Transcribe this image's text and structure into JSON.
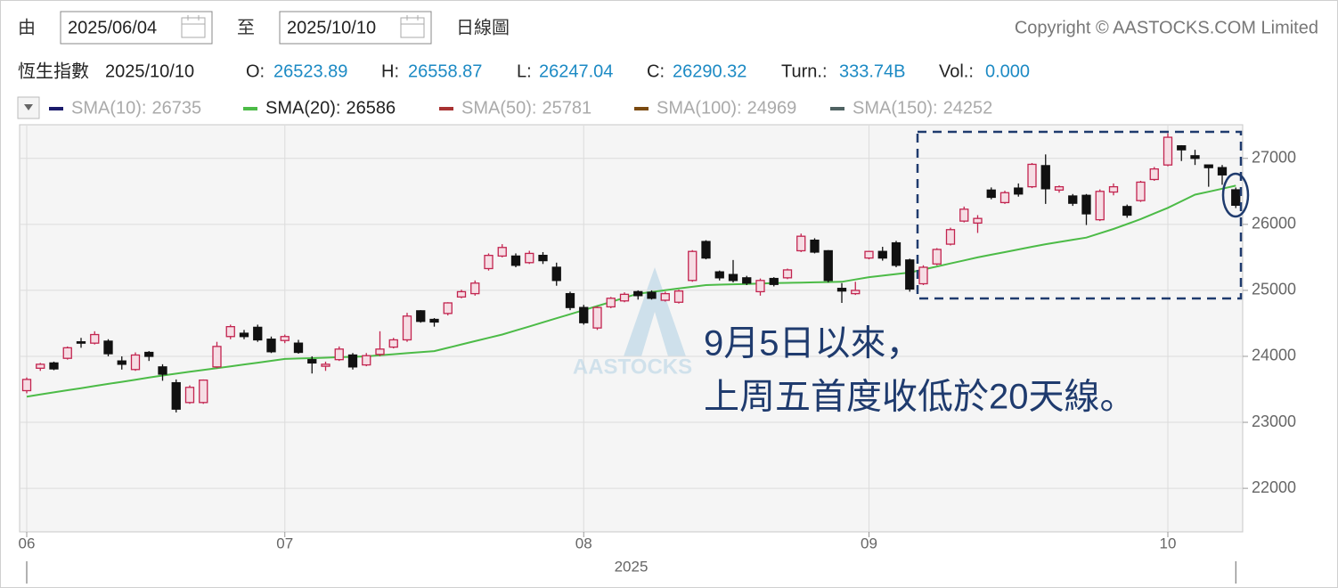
{
  "controls": {
    "from_label": "由",
    "from_date": "2025/06/04",
    "to_label": "至",
    "to_date": "2025/10/10",
    "chart_type": "日線圖",
    "copyright": "Copyright © AASTOCKS.COM Limited"
  },
  "quote": {
    "name": "恆生指數",
    "date": "2025/10/10",
    "fields": [
      {
        "label": "O:",
        "value": 26523.89
      },
      {
        "label": "H:",
        "value": 26558.87
      },
      {
        "label": "L:",
        "value": 26247.04
      },
      {
        "label": "C:",
        "value": 26290.32
      },
      {
        "label": "Turn.:",
        "value": "333.74B"
      },
      {
        "label": "Vol.:",
        "value": "0.000"
      }
    ]
  },
  "legend": [
    {
      "name": "SMA(10):",
      "value": 26735,
      "color": "#1b1b6b",
      "active": false
    },
    {
      "name": "SMA(20):",
      "value": 26586,
      "color": "#4cbb47",
      "active": true
    },
    {
      "name": "SMA(50):",
      "value": 25781,
      "color": "#a83232",
      "active": false
    },
    {
      "name": "SMA(100):",
      "value": 24969,
      "color": "#7a4a10",
      "active": false
    },
    {
      "name": "SMA(150):",
      "value": 24252,
      "color": "#4f6262",
      "active": false
    }
  ],
  "chart_data": {
    "type": "candlestick",
    "xlabel": "2025",
    "watermark": "AASTOCKS",
    "categories": [
      "06",
      null,
      null,
      null,
      null,
      null,
      null,
      null,
      null,
      null,
      null,
      null,
      null,
      null,
      null,
      null,
      null,
      null,
      null,
      "07",
      null,
      null,
      null,
      null,
      null,
      null,
      null,
      null,
      null,
      null,
      null,
      null,
      null,
      null,
      null,
      null,
      null,
      null,
      null,
      null,
      null,
      "08",
      null,
      null,
      null,
      null,
      null,
      null,
      null,
      null,
      null,
      null,
      null,
      null,
      null,
      null,
      null,
      null,
      null,
      null,
      null,
      null,
      "09",
      null,
      null,
      null,
      null,
      null,
      null,
      null,
      null,
      null,
      null,
      null,
      null,
      null,
      null,
      null,
      null,
      null,
      null,
      null,
      null,
      null,
      "10",
      null,
      null,
      null,
      null,
      null
    ],
    "open": [
      23480,
      23820,
      23900,
      23970,
      24220,
      24200,
      24230,
      23930,
      23800,
      24060,
      23840,
      23600,
      23300,
      23300,
      23840,
      24300,
      24350,
      24440,
      24260,
      24240,
      24200,
      23950,
      23850,
      23950,
      24020,
      23870,
      24030,
      24140,
      24250,
      24690,
      24560,
      24650,
      24900,
      24950,
      25330,
      25520,
      25520,
      25420,
      25530,
      25350,
      24950,
      24740,
      24430,
      24750,
      24840,
      24980,
      24970,
      24850,
      24820,
      25150,
      25740,
      25280,
      25240,
      25190,
      24980,
      25180,
      25190,
      25600,
      25760,
      25600,
      25030,
      24950,
      25490,
      25590,
      25720,
      25460,
      25100,
      25400,
      25700,
      26050,
      26020,
      26520,
      26330,
      26550,
      26570,
      26890,
      26520,
      26430,
      26440,
      26070,
      26490,
      26270,
      26360,
      26680,
      26900,
      27190,
      27040,
      26900,
      26860,
      26523.89
    ],
    "high": [
      23680,
      23900,
      23920,
      24150,
      24280,
      24380,
      24260,
      24000,
      24060,
      24080,
      23880,
      23650,
      23560,
      23650,
      24220,
      24480,
      24400,
      24480,
      24300,
      24330,
      24250,
      24000,
      23920,
      24150,
      24050,
      24050,
      24380,
      24280,
      24660,
      24700,
      24580,
      24820,
      25010,
      25150,
      25560,
      25700,
      25560,
      25600,
      25580,
      25420,
      24980,
      24780,
      24760,
      24900,
      24970,
      25000,
      25000,
      24980,
      25010,
      25610,
      25760,
      25300,
      25460,
      25220,
      25180,
      25200,
      25330,
      25860,
      25790,
      25610,
      25110,
      25130,
      25600,
      25660,
      25750,
      25480,
      25380,
      25640,
      25950,
      26270,
      26140,
      26560,
      26510,
      26620,
      26930,
      27060,
      26590,
      26460,
      26460,
      26530,
      26620,
      26300,
      26660,
      26870,
      27380,
      27200,
      27130,
      26900,
      26900,
      26558.87
    ],
    "low": [
      23440,
      23780,
      23790,
      23950,
      24130,
      24180,
      24000,
      23800,
      23780,
      23930,
      23630,
      23150,
      23280,
      23280,
      23820,
      24260,
      24260,
      24220,
      24050,
      24200,
      24040,
      23740,
      23780,
      23930,
      23800,
      23850,
      24000,
      24120,
      24220,
      24510,
      24450,
      24620,
      24880,
      24920,
      25300,
      25500,
      25350,
      25400,
      25400,
      25070,
      24700,
      24480,
      24400,
      24730,
      24820,
      24860,
      24860,
      24830,
      24800,
      25130,
      25470,
      25150,
      25120,
      25080,
      24920,
      25060,
      25170,
      25580,
      25560,
      25120,
      24810,
      24930,
      25470,
      25450,
      25350,
      24980,
      25080,
      25380,
      25680,
      26030,
      25870,
      26380,
      26310,
      26420,
      26550,
      26310,
      26480,
      26280,
      25990,
      26050,
      26440,
      26100,
      26340,
      26660,
      26880,
      26960,
      26900,
      26570,
      26600,
      26247.04
    ],
    "close": [
      23650,
      23880,
      23810,
      24130,
      24200,
      24330,
      24040,
      23880,
      24020,
      24000,
      23730,
      23200,
      23530,
      23640,
      24150,
      24450,
      24300,
      24250,
      24070,
      24300,
      24060,
      23900,
      23880,
      24110,
      23840,
      24010,
      24110,
      24250,
      24610,
      24530,
      24520,
      24810,
      24980,
      25110,
      25530,
      25650,
      25380,
      25560,
      25450,
      25150,
      24740,
      24510,
      24740,
      24880,
      24940,
      24920,
      24880,
      24950,
      24990,
      25590,
      25490,
      25190,
      25150,
      25110,
      25150,
      25090,
      25310,
      25820,
      25580,
      25150,
      24990,
      25000,
      25590,
      25490,
      25380,
      25020,
      25350,
      25620,
      25920,
      26230,
      26090,
      26410,
      26480,
      26460,
      26910,
      26540,
      26570,
      26320,
      26160,
      26500,
      26570,
      26140,
      26640,
      26840,
      27320,
      27130,
      27000,
      26860,
      26750,
      26290.32
    ],
    "up_color": "#c2244f",
    "up_fill": "#f6dde4",
    "down_color": "#111111",
    "series": [
      {
        "name": "SMA(20)",
        "color": "#4cbb47",
        "values": [
          23390,
          23422,
          23454,
          23486,
          23518,
          23550,
          23582,
          23614,
          23646,
          23678,
          23710,
          23738,
          23766,
          23793,
          23821,
          23849,
          23877,
          23904,
          23932,
          23960,
          23967,
          23973,
          23980,
          23987,
          23993,
          24000,
          24016,
          24032,
          24048,
          24064,
          24080,
          24130,
          24180,
          24230,
          24280,
          24330,
          24392,
          24453,
          24515,
          24577,
          24638,
          24700,
          24763,
          24825,
          24888,
          24950,
          24976,
          25002,
          25028,
          25054,
          25080,
          25086,
          25092,
          25098,
          25104,
          25110,
          25114,
          25118,
          25122,
          25126,
          25130,
          25165,
          25200,
          25223,
          25247,
          25270,
          25316,
          25362,
          25408,
          25454,
          25500,
          25540,
          25580,
          25620,
          25660,
          25700,
          25733,
          25767,
          25800,
          25865,
          25930,
          26005,
          26080,
          26165,
          26250,
          26350,
          26450,
          26495,
          26540,
          26586
        ]
      }
    ],
    "ylim": [
      21340,
      27510
    ],
    "yticks": [
      22000,
      23000,
      24000,
      25000,
      26000,
      27000
    ],
    "grid": true,
    "annotations": [
      "9月5日以來，",
      "上周五首度收低於20天線。"
    ]
  }
}
